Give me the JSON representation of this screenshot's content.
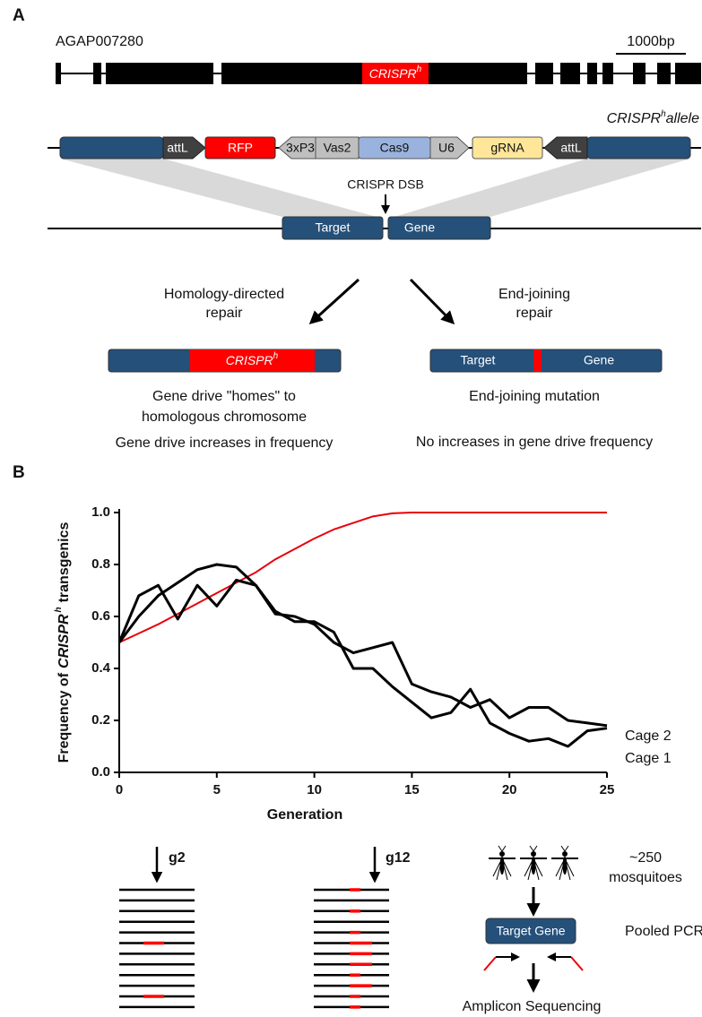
{
  "panel_a": {
    "label": "A",
    "gene_id": "AGAP007280",
    "scale_bar": "1000bp",
    "exon_label": {
      "text": "CRISPR",
      "superscript": "h"
    },
    "allele_label": {
      "text": "CRISPR",
      "superscript": "h",
      "suffix": "allele"
    },
    "construct": [
      "attL",
      "RFP",
      "3xP3",
      "Vas2",
      "Cas9",
      "U6",
      "gRNA",
      "attL"
    ],
    "dsb_label": "CRISPR DSB",
    "target_gene": [
      "Target",
      "Gene"
    ],
    "hdr": {
      "title": [
        "Homology-directed",
        "repair"
      ],
      "bar_label": {
        "text": "CRISPR",
        "superscript": "h"
      },
      "outcome": [
        "Gene drive \"homes\" to",
        "homologous chromosome"
      ],
      "effect": "Gene drive increases in frequency"
    },
    "ej": {
      "title": [
        "End-joining",
        "repair"
      ],
      "bar_label": [
        "Target",
        "Gene"
      ],
      "outcome": "End-joining mutation",
      "effect": "No increases in gene drive frequency"
    }
  },
  "panel_b": {
    "label": "B"
  },
  "chart_data": {
    "type": "line",
    "x_label": "Generation",
    "y_label": {
      "text": "Frequency of",
      "italic": "CRISPR",
      "superscript": "h",
      "suffix": "transgenics"
    },
    "x": [
      0,
      1,
      2,
      3,
      4,
      5,
      6,
      7,
      8,
      9,
      10,
      11,
      12,
      13,
      14,
      15,
      16,
      17,
      18,
      19,
      20,
      21,
      22,
      23,
      24,
      25
    ],
    "xlim": [
      0,
      25
    ],
    "xticks": [
      0,
      5,
      10,
      15,
      20,
      25
    ],
    "ylim": [
      0,
      1
    ],
    "yticks": [
      {
        "value": 0,
        "label": "0.0"
      },
      {
        "value": 0.2,
        "label": "0.2"
      },
      {
        "value": 0.4,
        "label": "0.4"
      },
      {
        "value": 0.6,
        "label": "0.6"
      },
      {
        "value": 0.8,
        "label": "0.8"
      },
      {
        "value": 1,
        "label": "1.0"
      }
    ],
    "series": [
      {
        "color": "#e8000b",
        "values": [
          0.5,
          0.535,
          0.57,
          0.61,
          0.65,
          0.69,
          0.73,
          0.77,
          0.82,
          0.86,
          0.9,
          0.935,
          0.96,
          0.985,
          0.997,
          1,
          1,
          1,
          1,
          1,
          1,
          1,
          1,
          1,
          1,
          1
        ]
      },
      {
        "name": "Cage 2",
        "color": "#000000",
        "values": [
          0.5,
          0.6,
          0.68,
          0.73,
          0.78,
          0.8,
          0.79,
          0.72,
          0.61,
          0.6,
          0.57,
          0.5,
          0.46,
          0.48,
          0.5,
          0.34,
          0.31,
          0.29,
          0.25,
          0.28,
          0.21,
          0.25,
          0.25,
          0.2,
          0.19,
          0.18
        ]
      },
      {
        "name": "Cage 1",
        "color": "#000000",
        "values": [
          0.5,
          0.68,
          0.72,
          0.59,
          0.72,
          0.64,
          0.74,
          0.72,
          0.62,
          0.58,
          0.58,
          0.54,
          0.4,
          0.4,
          0.33,
          0.27,
          0.21,
          0.23,
          0.32,
          0.19,
          0.15,
          0.12,
          0.13,
          0.1,
          0.16,
          0.17
        ]
      }
    ]
  },
  "panel_b_bottom": {
    "samples": [
      "g2",
      "g12"
    ],
    "count": "~250",
    "subjects": "mosquitoes",
    "pcr_target": "Target Gene",
    "pcr_label": "Pooled PCR",
    "sequencing": "Amplicon Sequencing"
  }
}
